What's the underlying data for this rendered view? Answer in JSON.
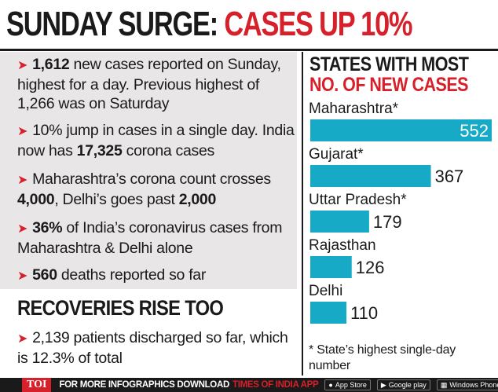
{
  "headline": {
    "part1": "SUNDAY SURGE:",
    "part2": "CASES UP 10%"
  },
  "bullets": [
    {
      "bold1": "1,612",
      "text1": " new cases reported on Sunday, highest for a day. Previous highest of 1,266 was on Saturday"
    },
    {
      "text1": "10% jump in cases in a single day. India now has ",
      "bold1": "17,325",
      "text2": " corona cases"
    },
    {
      "text1": "Maharashtra’s corona count crosses ",
      "bold1": "4,000",
      "text2": ", Delhi’s goes past ",
      "bold2": "2,000"
    },
    {
      "bold1": "36%",
      "text1": " of India’s coronavirus cases from Maharashtra & Delhi alone"
    },
    {
      "bold1": "560",
      "text1": " deaths reported so far"
    }
  ],
  "recoveries": {
    "title": "RECOVERIES RISE TOO",
    "text": "2,139 patients discharged so far, which is 12.3% of total"
  },
  "chart_header": {
    "line1": "STATES WITH MOST",
    "line2": "NO. OF NEW CASES"
  },
  "chart_data": {
    "type": "bar",
    "orientation": "horizontal",
    "categories": [
      "Maharashtra*",
      "Gujarat*",
      "Uttar Pradesh*",
      "Rajasthan",
      "Delhi"
    ],
    "values": [
      552,
      367,
      179,
      126,
      110
    ],
    "bar_color": "#17aac7",
    "title": "STATES WITH MOST NO. OF NEW CASES",
    "xlim": [
      0,
      552
    ]
  },
  "footnote": "* State’s highest single-day number",
  "footer": {
    "badge": "TOI",
    "text": "FOR MORE INFOGRAPHICS DOWNLOAD",
    "brand": "TIMES OF INDIA APP",
    "stores": [
      "App Store",
      "Google play",
      "Windows Phone"
    ],
    "store_icons": [
      "apple-icon",
      "play-icon",
      "windows-icon"
    ]
  },
  "colors": {
    "red": "#d6202a",
    "panel": "#e8e6e6",
    "bar": "#17aac7"
  }
}
